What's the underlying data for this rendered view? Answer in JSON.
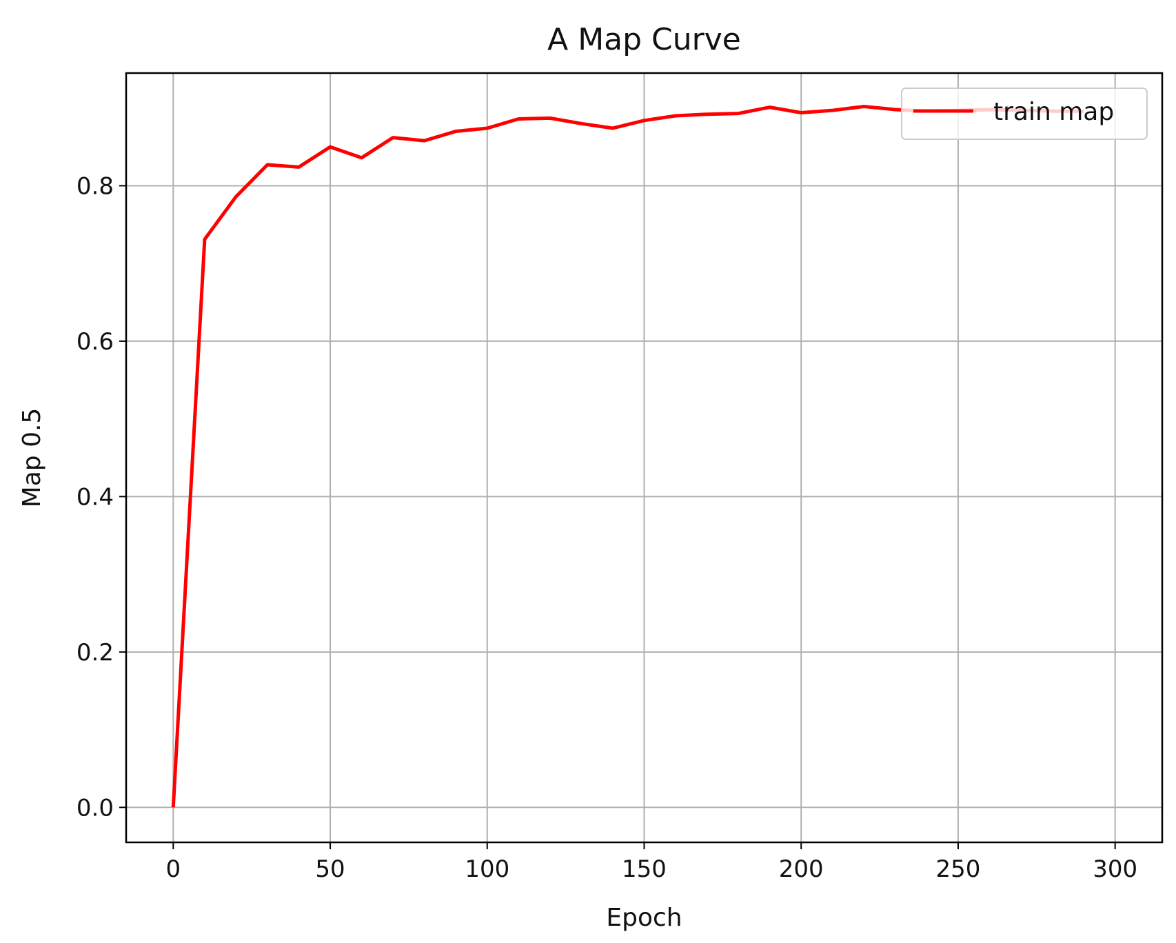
{
  "chart_data": {
    "type": "line",
    "title": "A Map Curve",
    "xlabel": "Epoch",
    "ylabel": "Map 0.5",
    "xlim": [
      -15,
      315
    ],
    "ylim": [
      -0.045,
      0.945
    ],
    "xticks": [
      0,
      50,
      100,
      150,
      200,
      250,
      300
    ],
    "yticks": [
      0.0,
      0.2,
      0.4,
      0.6,
      0.8
    ],
    "xtick_labels": [
      "0",
      "50",
      "100",
      "150",
      "200",
      "250",
      "300"
    ],
    "ytick_labels": [
      "0.0",
      "0.2",
      "0.4",
      "0.6",
      "0.8"
    ],
    "grid": true,
    "legend_position": "top-right",
    "series": [
      {
        "name": "train map",
        "color": "#ff0000",
        "x": [
          0,
          10,
          20,
          30,
          40,
          50,
          60,
          70,
          80,
          90,
          100,
          110,
          120,
          130,
          140,
          150,
          160,
          170,
          180,
          190,
          200,
          210,
          220,
          230,
          240,
          250,
          260,
          270,
          280,
          290
        ],
        "y": [
          0.0,
          0.731,
          0.786,
          0.827,
          0.824,
          0.85,
          0.836,
          0.862,
          0.858,
          0.87,
          0.874,
          0.886,
          0.887,
          0.88,
          0.874,
          0.884,
          0.89,
          0.892,
          0.893,
          0.901,
          0.894,
          0.897,
          0.902,
          0.898,
          0.896,
          0.897,
          0.898,
          0.897,
          0.896,
          0.896
        ]
      }
    ]
  }
}
